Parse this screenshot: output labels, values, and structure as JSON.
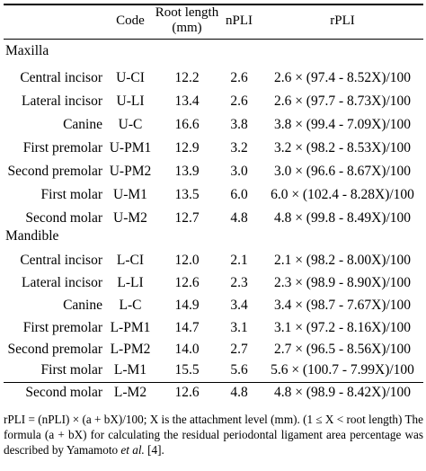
{
  "table": {
    "headers": {
      "code": "Code",
      "root_length_line1": "Root length",
      "root_length_line2": "(mm)",
      "npli": "nPLI",
      "rpli": "rPLI"
    },
    "groups": [
      {
        "label": "Maxilla",
        "rows": [
          {
            "name": "Central incisor",
            "code": "U-CI",
            "root_length": "12.2",
            "npli": "2.6",
            "rpli": "2.6 × (97.4 - 8.52X)/100"
          },
          {
            "name": "Lateral incisor",
            "code": "U-LI",
            "root_length": "13.4",
            "npli": "2.6",
            "rpli": "2.6 × (97.7 - 8.73X)/100"
          },
          {
            "name": "Canine",
            "code": "U-C",
            "root_length": "16.6",
            "npli": "3.8",
            "rpli": "3.8 × (99.4 - 7.09X)/100"
          },
          {
            "name": "First premolar",
            "code": "U-PM1",
            "root_length": "12.9",
            "npli": "3.2",
            "rpli": "3.2 × (98.2 - 8.53X)/100"
          },
          {
            "name": "Second premolar",
            "code": "U-PM2",
            "root_length": "13.9",
            "npli": "3.0",
            "rpli": "3.0 × (96.6 - 8.67X)/100"
          },
          {
            "name": "First molar",
            "code": "U-M1",
            "root_length": "13.5",
            "npli": "6.0",
            "rpli": "6.0 × (102.4 - 8.28X)/100"
          },
          {
            "name": "Second molar",
            "code": "U-M2",
            "root_length": "12.7",
            "npli": "4.8",
            "rpli": "4.8 × (99.8 - 8.49X)/100"
          }
        ]
      },
      {
        "label": "Mandible",
        "rows": [
          {
            "name": "Central incisor",
            "code": "L-CI",
            "root_length": "12.0",
            "npli": "2.1",
            "rpli": "2.1 × (98.2 - 8.00X)/100"
          },
          {
            "name": "Lateral incisor",
            "code": "L-LI",
            "root_length": "12.6",
            "npli": "2.3",
            "rpli": "2.3 × (98.9 - 8.90X)/100"
          },
          {
            "name": "Canine",
            "code": "L-C",
            "root_length": "14.9",
            "npli": "3.4",
            "rpli": "3.4 × (98.7 - 7.67X)/100"
          },
          {
            "name": "First premolar",
            "code": "L-PM1",
            "root_length": "14.7",
            "npli": "3.1",
            "rpli": "3.1 × (97.2 - 8.16X)/100"
          },
          {
            "name": "Second premolar",
            "code": "L-PM2",
            "root_length": "14.0",
            "npli": "2.7",
            "rpli": "2.7 × (96.5 - 8.56X)/100"
          },
          {
            "name": "First molar",
            "code": "L-M1",
            "root_length": "15.5",
            "npli": "5.6",
            "rpli": "5.6 × (100.7 - 7.99X)/100"
          },
          {
            "name": "Second molar",
            "code": "L-M2",
            "root_length": "12.6",
            "npli": "4.8",
            "rpli": "4.8 × (98.9 - 8.42X)/100"
          }
        ]
      }
    ],
    "footnote": {
      "text_before_italic": "rPLI = (nPLI) × (a + bX)/100; X is the attachment level (mm). (1 ≤ X < root length) The formula (a + bX) for calculating the residual periodontal ligament area percentage was described by Yamamoto ",
      "italic": "et al.",
      "text_after_italic": " [4]."
    }
  }
}
